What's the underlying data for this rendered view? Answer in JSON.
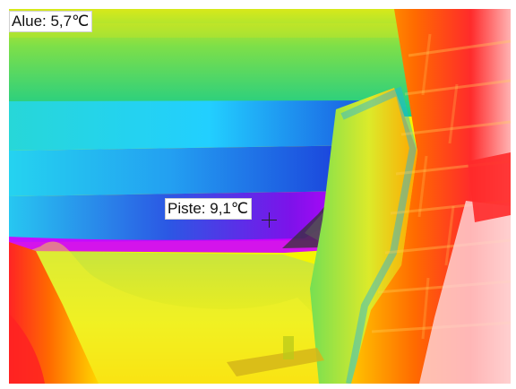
{
  "overlay": {
    "area_measurement": {
      "label": "Alue",
      "value": "5,7",
      "unit": "℃",
      "text": "Alue: 5,7℃"
    },
    "spot_measurement": {
      "label": "Piste",
      "value": "9,1",
      "unit": "℃",
      "text": "Piste: 9,1℃"
    }
  },
  "palette": {
    "cold": "#1a2fd6",
    "coldest": "#d000ff",
    "cool": "#28d6ff",
    "mid": "#1ec878",
    "warm": "#f5f500",
    "hot": "#ff8a00",
    "hottest": "#ff2020"
  },
  "icons": {
    "spot": "crosshair-icon"
  }
}
